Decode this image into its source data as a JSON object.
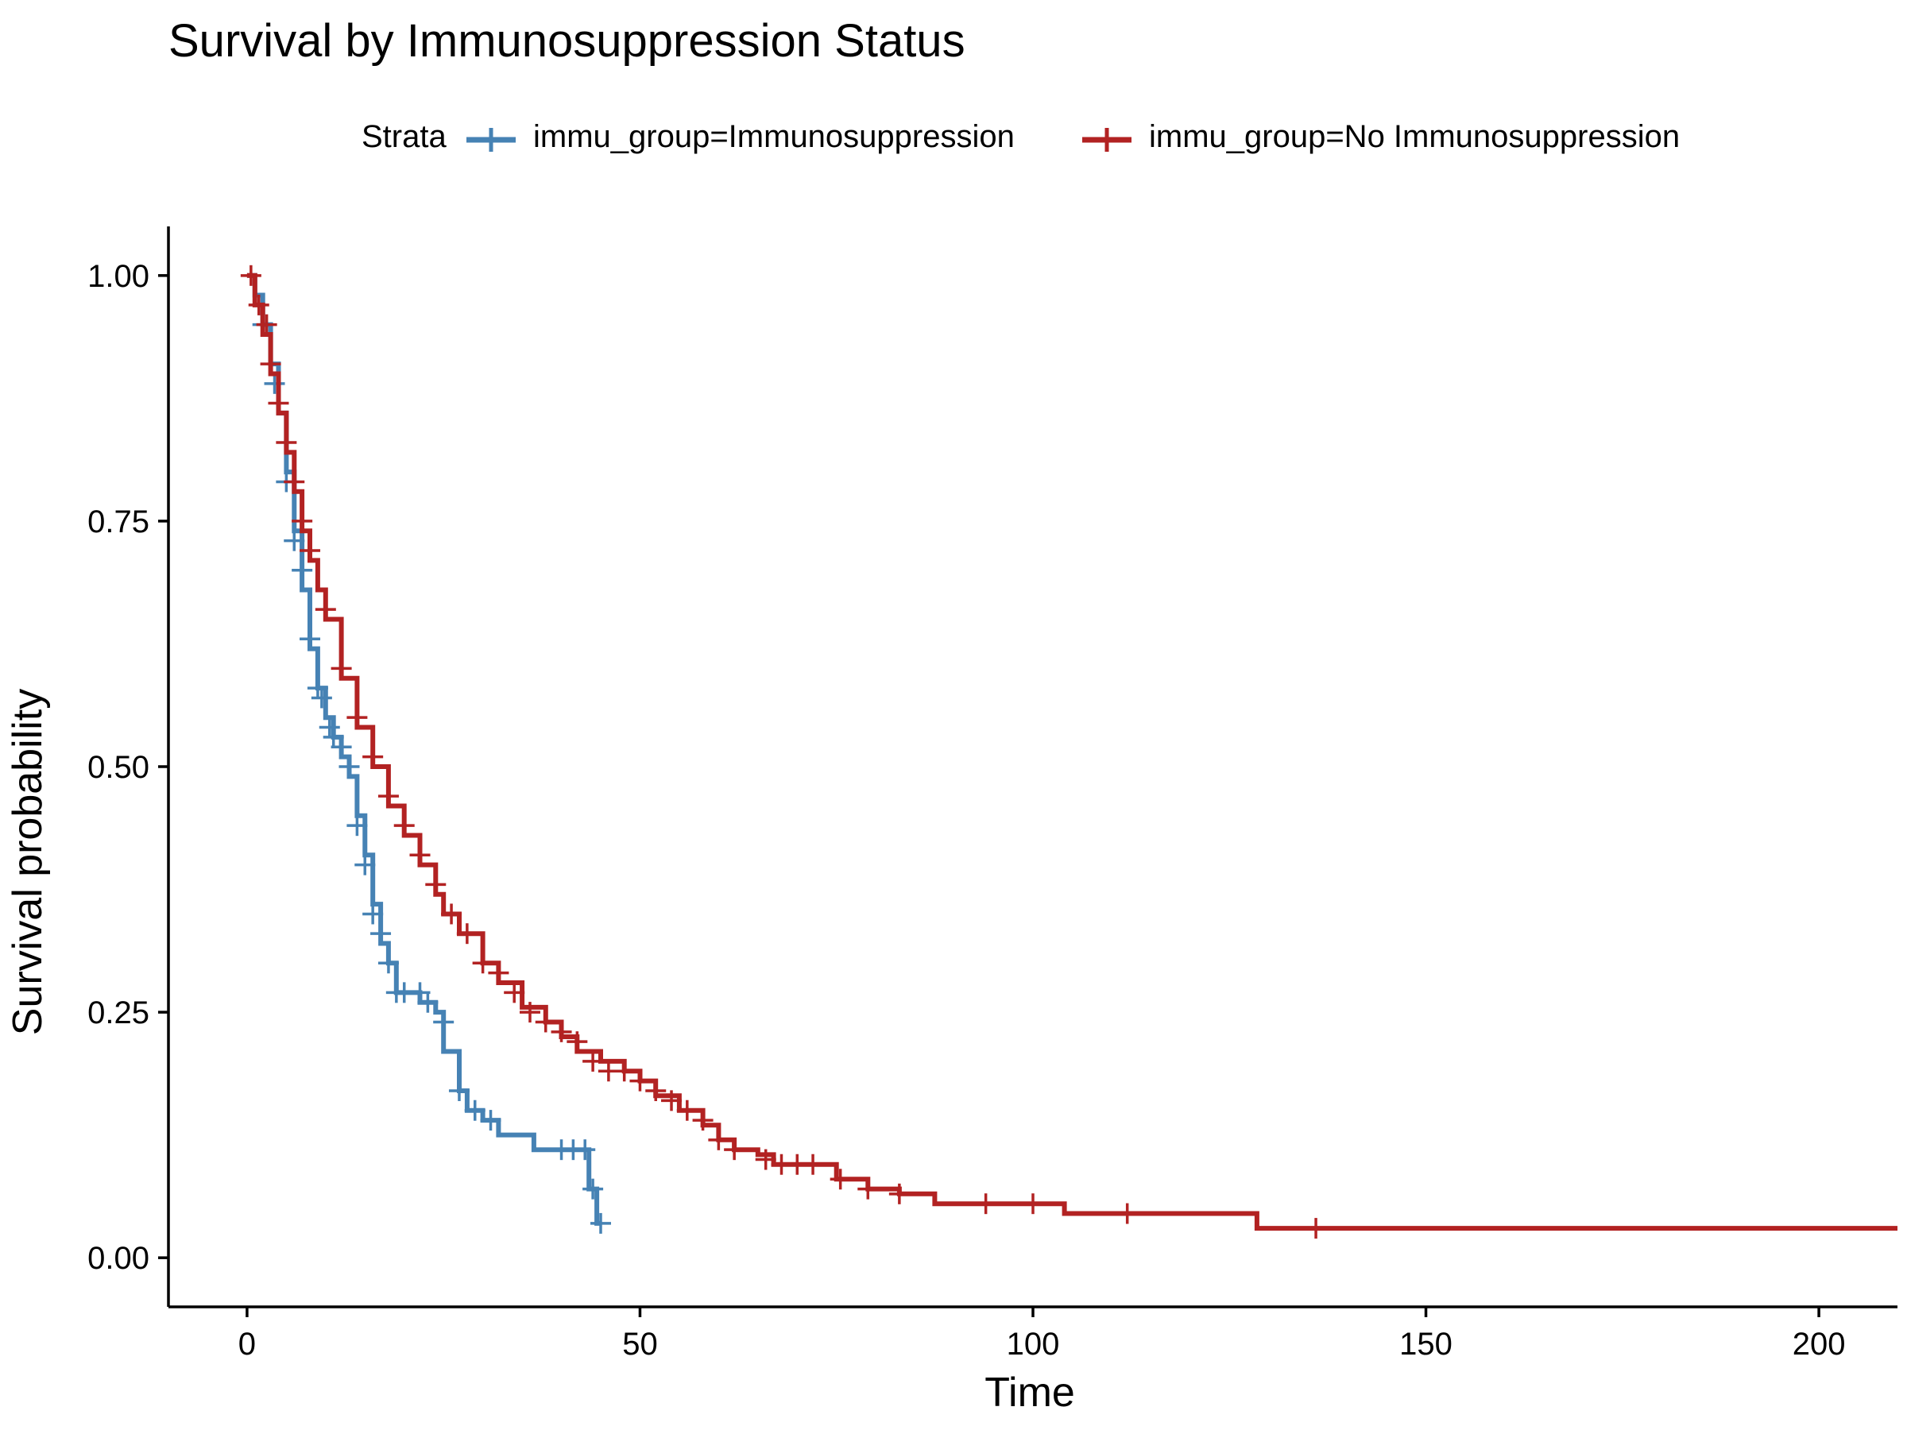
{
  "chart_data": {
    "type": "line",
    "subtype": "kaplan-meier step curve with censor marks",
    "title": "Survival by Immunosuppression Status",
    "xlabel": "Time",
    "ylabel": "Survival probability",
    "xlim": [
      -10,
      210
    ],
    "ylim": [
      -0.05,
      1.05
    ],
    "xticks": [
      0,
      50,
      100,
      150,
      200
    ],
    "xtick_labels": [
      "0",
      "50",
      "100",
      "150",
      "200"
    ],
    "yticks": [
      0,
      0.25,
      0.5,
      0.75,
      1
    ],
    "ytick_labels": [
      "0.00",
      "0.25",
      "0.50",
      "0.75",
      "1.00"
    ],
    "grid": false,
    "legend": {
      "title": "Strata",
      "position": "top"
    },
    "series": [
      {
        "name": "immu_group=Immunosuppression",
        "color": "#4682B4",
        "curve": [
          [
            0,
            1.0
          ],
          [
            1,
            0.98
          ],
          [
            2,
            0.95
          ],
          [
            3,
            0.91
          ],
          [
            4,
            0.86
          ],
          [
            5,
            0.8
          ],
          [
            6,
            0.74
          ],
          [
            7,
            0.68
          ],
          [
            8,
            0.62
          ],
          [
            9,
            0.58
          ],
          [
            10,
            0.55
          ],
          [
            11,
            0.53
          ],
          [
            12,
            0.51
          ],
          [
            13,
            0.49
          ],
          [
            14,
            0.45
          ],
          [
            15,
            0.41
          ],
          [
            16,
            0.36
          ],
          [
            17,
            0.32
          ],
          [
            18,
            0.3
          ],
          [
            19,
            0.27
          ],
          [
            21,
            0.27
          ],
          [
            22,
            0.26
          ],
          [
            24,
            0.25
          ],
          [
            25,
            0.21
          ],
          [
            27,
            0.17
          ],
          [
            28,
            0.15
          ],
          [
            30,
            0.14
          ],
          [
            32,
            0.125
          ],
          [
            36,
            0.125
          ],
          [
            36.5,
            0.11
          ],
          [
            43,
            0.11
          ],
          [
            43.5,
            0.07
          ],
          [
            44.5,
            0.035
          ],
          [
            45,
            0.035
          ]
        ],
        "censor": [
          [
            2,
            0.95
          ],
          [
            3.5,
            0.89
          ],
          [
            5,
            0.79
          ],
          [
            6,
            0.73
          ],
          [
            7,
            0.7
          ],
          [
            8,
            0.63
          ],
          [
            9,
            0.58
          ],
          [
            9.5,
            0.57
          ],
          [
            10.5,
            0.54
          ],
          [
            11,
            0.53
          ],
          [
            12,
            0.52
          ],
          [
            13,
            0.5
          ],
          [
            14,
            0.44
          ],
          [
            15,
            0.4
          ],
          [
            16,
            0.35
          ],
          [
            17,
            0.33
          ],
          [
            18,
            0.3
          ],
          [
            19,
            0.27
          ],
          [
            20,
            0.27
          ],
          [
            22,
            0.27
          ],
          [
            23,
            0.26
          ],
          [
            25,
            0.24
          ],
          [
            27,
            0.17
          ],
          [
            29,
            0.15
          ],
          [
            31,
            0.14
          ],
          [
            40,
            0.11
          ],
          [
            41.5,
            0.11
          ],
          [
            43,
            0.11
          ],
          [
            44,
            0.07
          ],
          [
            45,
            0.035
          ]
        ]
      },
      {
        "name": "immu_group=No Immunosuppression",
        "color": "#B22222",
        "curve": [
          [
            0,
            1.0
          ],
          [
            1,
            0.97
          ],
          [
            2,
            0.94
          ],
          [
            3,
            0.9
          ],
          [
            4,
            0.86
          ],
          [
            5,
            0.82
          ],
          [
            6,
            0.78
          ],
          [
            7,
            0.74
          ],
          [
            8,
            0.71
          ],
          [
            9,
            0.68
          ],
          [
            10,
            0.65
          ],
          [
            12,
            0.59
          ],
          [
            14,
            0.54
          ],
          [
            16,
            0.5
          ],
          [
            18,
            0.46
          ],
          [
            20,
            0.43
          ],
          [
            22,
            0.4
          ],
          [
            24,
            0.37
          ],
          [
            25,
            0.35
          ],
          [
            27,
            0.33
          ],
          [
            30,
            0.3
          ],
          [
            32,
            0.28
          ],
          [
            35,
            0.255
          ],
          [
            38,
            0.24
          ],
          [
            40,
            0.225
          ],
          [
            42,
            0.21
          ],
          [
            45,
            0.2
          ],
          [
            48,
            0.19
          ],
          [
            50,
            0.18
          ],
          [
            52,
            0.165
          ],
          [
            55,
            0.15
          ],
          [
            58,
            0.135
          ],
          [
            60,
            0.12
          ],
          [
            62,
            0.11
          ],
          [
            65,
            0.105
          ],
          [
            67,
            0.095
          ],
          [
            74,
            0.095
          ],
          [
            75,
            0.08
          ],
          [
            79,
            0.07
          ],
          [
            82,
            0.07
          ],
          [
            83,
            0.065
          ],
          [
            87,
            0.065
          ],
          [
            87.5,
            0.055
          ],
          [
            103,
            0.055
          ],
          [
            104,
            0.045
          ],
          [
            128,
            0.045
          ],
          [
            128.5,
            0.03
          ],
          [
            210,
            0.03
          ]
        ],
        "censor": [
          [
            0.5,
            1.0
          ],
          [
            1.5,
            0.97
          ],
          [
            2.5,
            0.95
          ],
          [
            3,
            0.91
          ],
          [
            4,
            0.87
          ],
          [
            5,
            0.83
          ],
          [
            6,
            0.79
          ],
          [
            7,
            0.75
          ],
          [
            8,
            0.72
          ],
          [
            10,
            0.66
          ],
          [
            12,
            0.6
          ],
          [
            14,
            0.55
          ],
          [
            16,
            0.51
          ],
          [
            18,
            0.47
          ],
          [
            20,
            0.44
          ],
          [
            22,
            0.41
          ],
          [
            24,
            0.38
          ],
          [
            26,
            0.35
          ],
          [
            28,
            0.33
          ],
          [
            30,
            0.3
          ],
          [
            32,
            0.29
          ],
          [
            34,
            0.27
          ],
          [
            36,
            0.25
          ],
          [
            38,
            0.24
          ],
          [
            40,
            0.23
          ],
          [
            42,
            0.22
          ],
          [
            44,
            0.2
          ],
          [
            46,
            0.19
          ],
          [
            48,
            0.19
          ],
          [
            50,
            0.18
          ],
          [
            52,
            0.17
          ],
          [
            54,
            0.16
          ],
          [
            56,
            0.15
          ],
          [
            58,
            0.14
          ],
          [
            60,
            0.12
          ],
          [
            62,
            0.11
          ],
          [
            66,
            0.1
          ],
          [
            68,
            0.095
          ],
          [
            70,
            0.095
          ],
          [
            72,
            0.095
          ],
          [
            75.5,
            0.08
          ],
          [
            79,
            0.07
          ],
          [
            83,
            0.065
          ],
          [
            94,
            0.055
          ],
          [
            100,
            0.055
          ],
          [
            112,
            0.045
          ],
          [
            136,
            0.03
          ]
        ]
      }
    ]
  }
}
